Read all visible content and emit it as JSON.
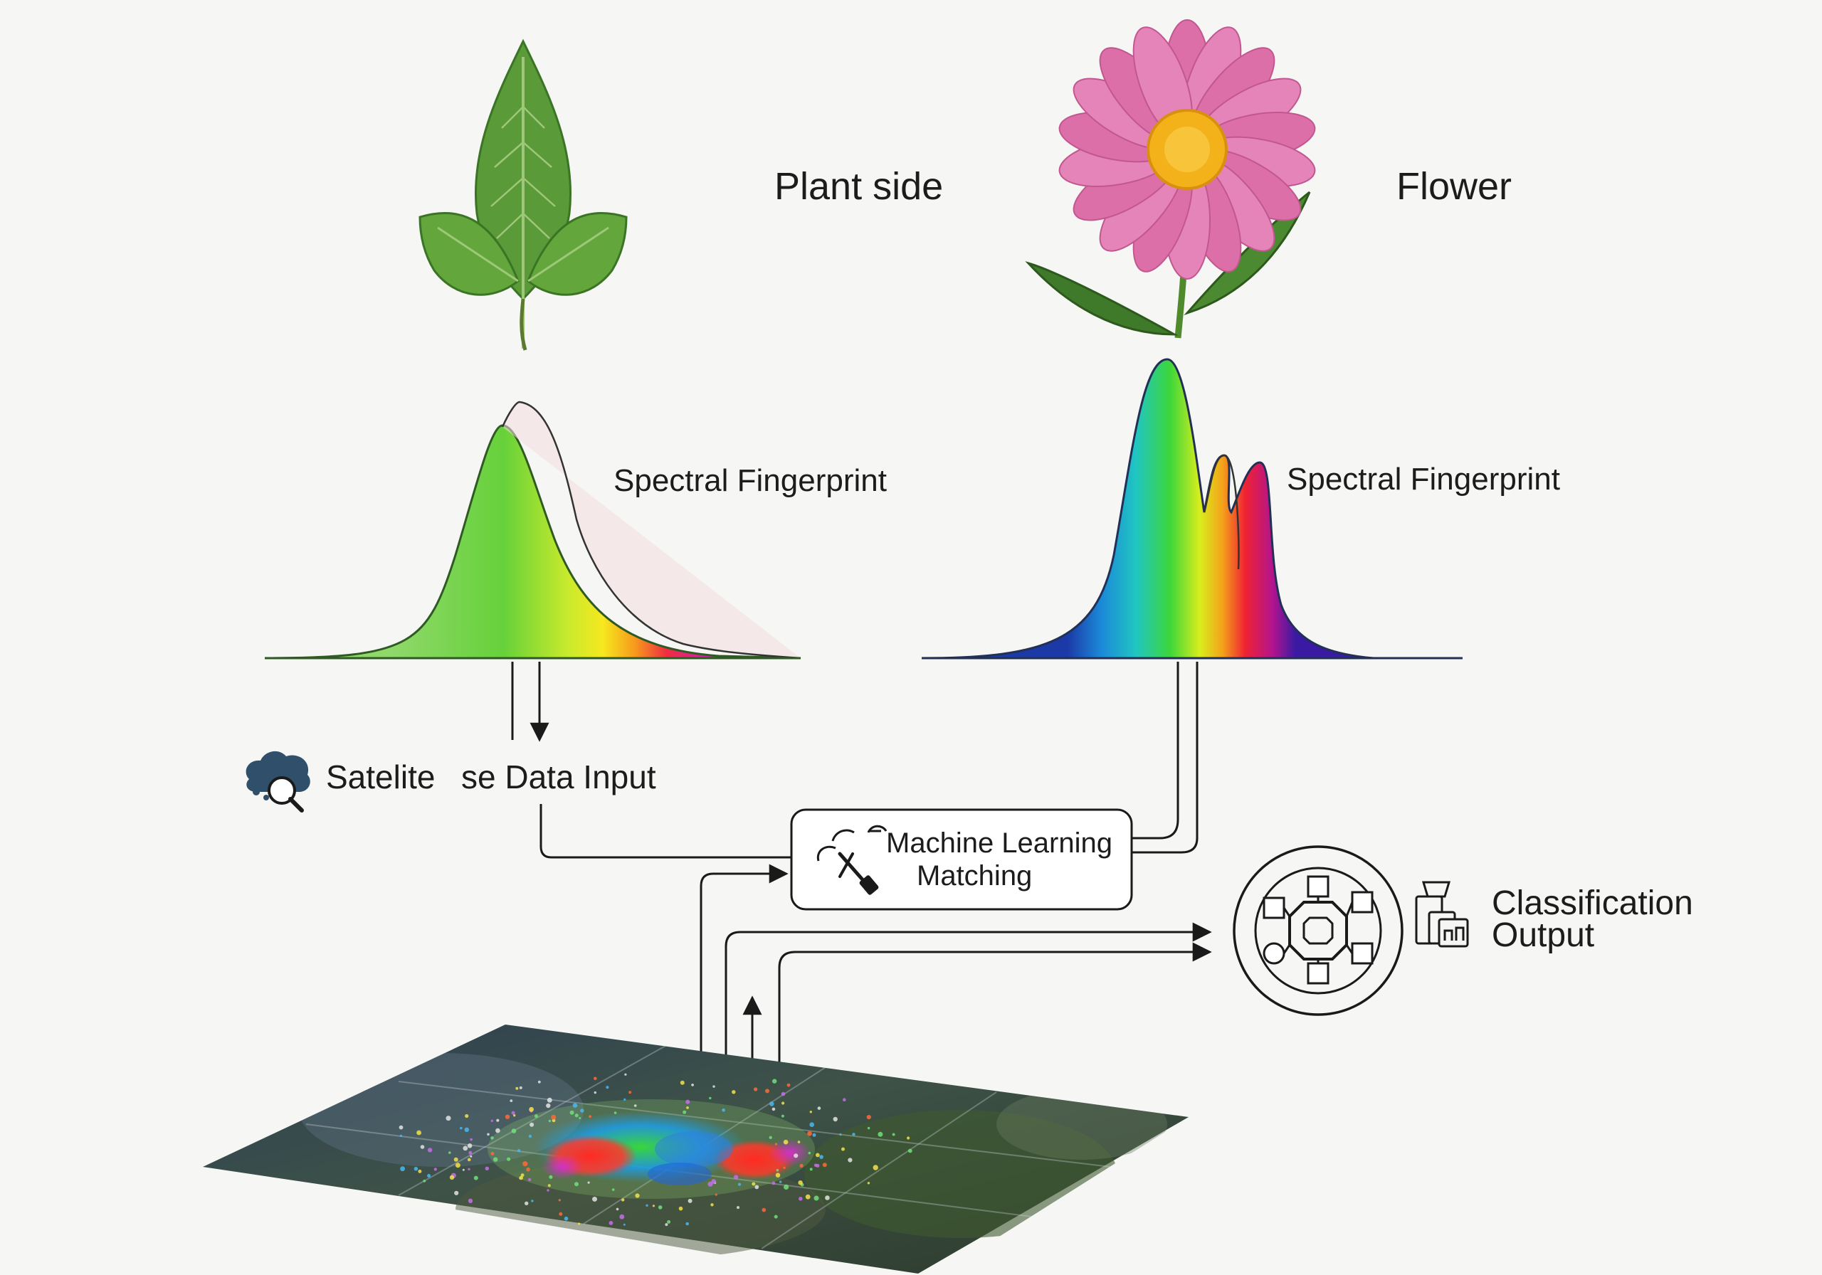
{
  "labels": {
    "plant_side": "Plant side",
    "flower": "Flower",
    "spectral_left": "Spectral Fingerprint",
    "spectral_right": "Spectral Fingerprint",
    "satellite_part1": "Satelite",
    "satellite_part2": "se Data Input",
    "ml_line1": "Machine Learning",
    "ml_line2": "Matching",
    "classification_line1": "Classification",
    "classification_line2": "Output"
  },
  "icons": {
    "leaf": "leaf-illustration",
    "flower": "pink-daisy-illustration",
    "satellite": "cloud-search-icon",
    "ml": "satellite-dish-tools-icon",
    "network": "network-node-circle-icon",
    "classification": "stacked-boxes-icon",
    "map": "satellite-heatmap-plane"
  },
  "colors": {
    "leaf_green": "#5a9a38",
    "petal_pink": "#e07ab0",
    "flower_center": "#f3b21a",
    "line": "#1a1a1a"
  }
}
